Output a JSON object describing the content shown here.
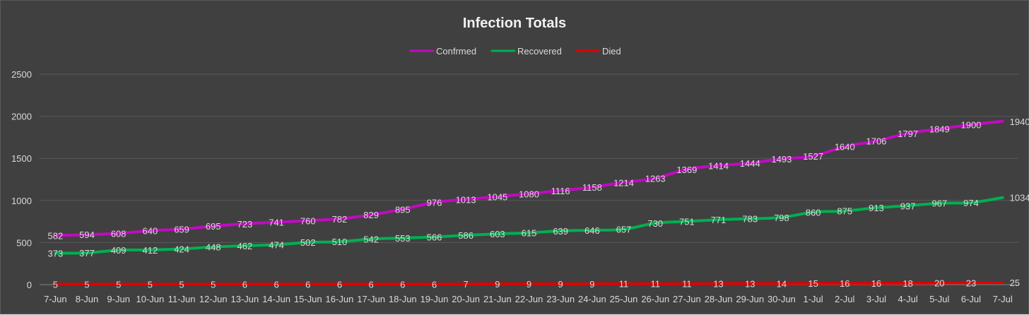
{
  "chart_data": {
    "type": "line",
    "title": "Infection Totals",
    "categories": [
      "7-Jun",
      "8-Jun",
      "9-Jun",
      "10-Jun",
      "11-Jun",
      "12-Jun",
      "13-Jun",
      "14-Jun",
      "15-Jun",
      "16-Jun",
      "17-Jun",
      "18-Jun",
      "19-Jun",
      "20-Jun",
      "21-Jun",
      "22-Jun",
      "23-Jun",
      "24-Jun",
      "25-Jun",
      "26-Jun",
      "27-Jun",
      "28-Jun",
      "29-Jun",
      "30-Jun",
      "1-Jul",
      "2-Jul",
      "3-Jul",
      "4-Jul",
      "5-Jul",
      "6-Jul",
      "7-Jul"
    ],
    "ylim": [
      0,
      2500
    ],
    "yticks": [
      0,
      500,
      1000,
      1500,
      2000,
      2500
    ],
    "grid": true,
    "legend": "top-center",
    "series": [
      {
        "name": "Confrmed",
        "color": "#c00bc0",
        "values": [
          582,
          594,
          608,
          640,
          659,
          695,
          723,
          741,
          760,
          782,
          829,
          895,
          976,
          1013,
          1045,
          1080,
          1116,
          1158,
          1214,
          1263,
          1369,
          1414,
          1444,
          1493,
          1527,
          1640,
          1706,
          1797,
          1849,
          1900,
          1940
        ]
      },
      {
        "name": "Recovered",
        "color": "#00b050",
        "values": [
          373,
          377,
          409,
          412,
          424,
          448,
          462,
          474,
          502,
          510,
          542,
          553,
          566,
          586,
          603,
          615,
          639,
          646,
          657,
          730,
          751,
          771,
          783,
          798,
          860,
          875,
          913,
          937,
          967,
          974,
          1034
        ]
      },
      {
        "name": "Died",
        "color": "#e00000",
        "values": [
          5,
          5,
          5,
          5,
          5,
          5,
          6,
          6,
          6,
          6,
          6,
          6,
          6,
          7,
          9,
          9,
          9,
          9,
          11,
          11,
          11,
          13,
          13,
          14,
          15,
          16,
          16,
          18,
          20,
          23,
          25
        ]
      }
    ]
  }
}
